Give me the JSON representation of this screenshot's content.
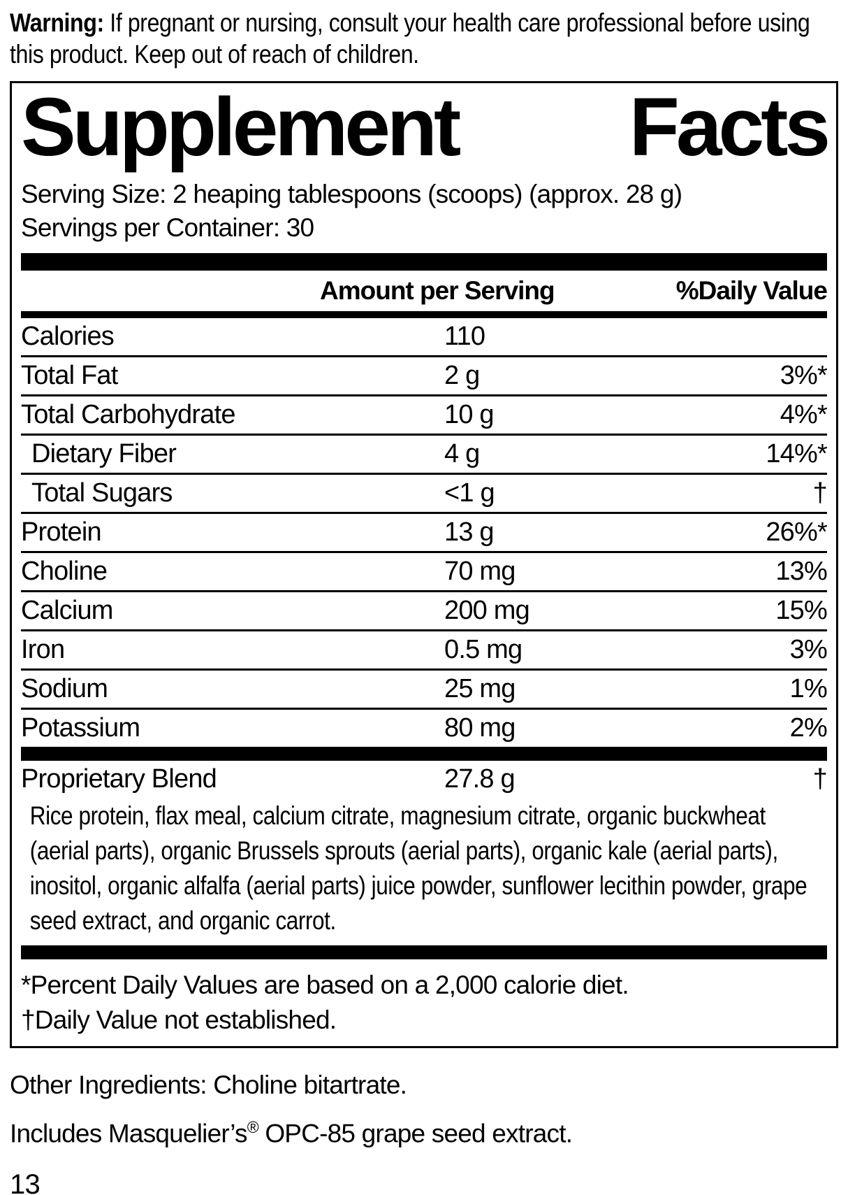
{
  "warning": {
    "label": "Warning:",
    "text": "If pregnant or nursing, consult your health care professional before using this product. Keep out of reach of children."
  },
  "panel": {
    "title": {
      "left": "Supplement",
      "right": "Facts"
    },
    "serving_size": "Serving Size: 2 heaping tablespoons (scoops) (approx. 28 g)",
    "servings_per_container": "Servings per Container: 30",
    "columns": {
      "amount": "Amount per Serving",
      "dv": "%Daily Value"
    },
    "rows": [
      {
        "label": "Calories",
        "amount": "110",
        "dv": "",
        "indent": false
      },
      {
        "label": "Total Fat",
        "amount": "2 g",
        "dv": "3%*",
        "indent": false
      },
      {
        "label": "Total Carbohydrate",
        "amount": "10 g",
        "dv": "4%*",
        "indent": false
      },
      {
        "label": "Dietary Fiber",
        "amount": "4 g",
        "dv": "14%*",
        "indent": true
      },
      {
        "label": "Total Sugars",
        "amount": "<1 g",
        "dv": "†",
        "indent": true
      },
      {
        "label": "Protein",
        "amount": "13 g",
        "dv": "26%*",
        "indent": false
      },
      {
        "label": "Choline",
        "amount": "70 mg",
        "dv": "13%",
        "indent": false
      },
      {
        "label": "Calcium",
        "amount": "200 mg",
        "dv": "15%",
        "indent": false
      },
      {
        "label": "Iron",
        "amount": "0.5 mg",
        "dv": "3%",
        "indent": false
      },
      {
        "label": "Sodium",
        "amount": "25 mg",
        "dv": "1%",
        "indent": false
      },
      {
        "label": "Potassium",
        "amount": "80 mg",
        "dv": "2%",
        "indent": false
      }
    ],
    "blend": {
      "label": "Proprietary Blend",
      "amount": "27.8 g",
      "dv": "†",
      "ingredients": "Rice protein, flax meal, calcium citrate, magnesium citrate, organic buckwheat (aerial parts), organic Brussels sprouts (aerial parts), organic kale (aerial parts), inositol, organic alfalfa (aerial parts) juice powder, sunflower lecithin powder, grape seed extract, and organic carrot."
    },
    "footnotes": {
      "percent_dv": "*Percent Daily Values are based on a 2,000 calorie diet.",
      "not_established": "†Daily Value not established."
    }
  },
  "other_ingredients": "Other Ingredients: Choline bitartrate.",
  "includes_note": {
    "prefix": "Includes Masquelier’s",
    "reg": "®",
    "suffix": " OPC-85 grape seed extract."
  },
  "page_number": "13",
  "colors": {
    "ink": "#000000",
    "paper": "#ffffff"
  }
}
